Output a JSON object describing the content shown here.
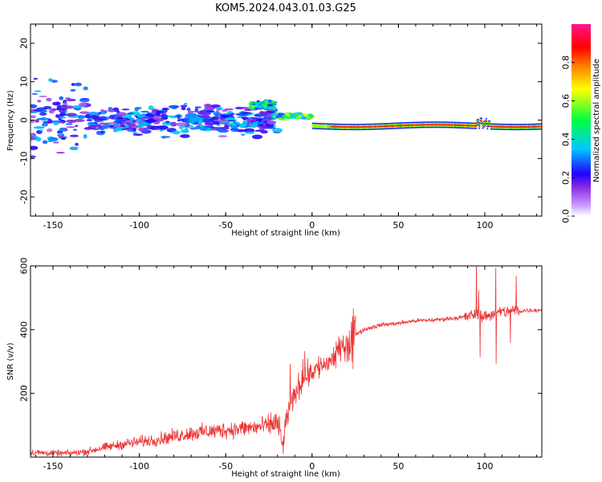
{
  "title": "KOM5.2024.043.01.03.G25",
  "chart_data": [
    {
      "type": "heatmap",
      "xlabel": "Height of straight line (km)",
      "ylabel": "Frequency (Hz)",
      "xlim": [
        -163,
        133
      ],
      "ylim": [
        -25,
        25
      ],
      "xticks": [
        -150,
        -100,
        -50,
        0,
        50,
        100
      ],
      "yticks": [
        -20,
        -10,
        0,
        10,
        20
      ],
      "colorbar": {
        "label": "Normalized spectral amplitude",
        "range": [
          0,
          1
        ],
        "ticks": [
          "0.0",
          "0.2",
          "0.4",
          "0.6",
          "0.8"
        ],
        "colormap": [
          "#ffffff",
          "#c896ff",
          "#8a2be2",
          "#2200ff",
          "#00c8ff",
          "#00ff40",
          "#ffff00",
          "#ff8000",
          "#ff0000",
          "#ff1490"
        ]
      },
      "trace": {
        "segments": [
          {
            "x_range": [
              -163,
              -20
            ],
            "freq_center": 0,
            "freq_spread": 4,
            "amplitude": 0.25
          },
          {
            "x_range": [
              -35,
              -22
            ],
            "freq_center": 4,
            "freq_spread": 1.5,
            "amplitude": 0.45
          },
          {
            "x_range": [
              -22,
              0
            ],
            "freq_center": 1,
            "freq_spread": 1,
            "amplitude": 0.55
          },
          {
            "x_range": [
              0,
              133
            ],
            "freq_center": -1.5,
            "freq_spread": 0.7,
            "amplitude": 0.85
          }
        ]
      }
    },
    {
      "type": "line",
      "xlabel": "Height of straight line (km)",
      "ylabel": "SNR (v/v)",
      "xlim": [
        -163,
        133
      ],
      "ylim": [
        0,
        600
      ],
      "xticks": [
        -150,
        -100,
        -50,
        0,
        50,
        100
      ],
      "yticks": [
        200,
        400,
        600
      ],
      "color": "#ee3333",
      "series": [
        {
          "x": [
            -163,
            -150,
            -140,
            -130,
            -120,
            -110,
            -100,
            -90,
            -80,
            -70,
            -60,
            -50,
            -40,
            -30,
            -25,
            -20,
            -17,
            -15,
            -10,
            -5,
            0,
            5,
            10,
            15,
            20,
            25,
            30,
            35,
            40,
            50,
            60,
            70,
            80,
            90,
            95,
            100,
            105,
            110,
            115,
            120,
            125,
            133
          ],
          "y": [
            15,
            12,
            12,
            18,
            30,
            40,
            48,
            55,
            65,
            75,
            80,
            85,
            90,
            95,
            100,
            110,
            30,
            120,
            200,
            250,
            270,
            285,
            300,
            330,
            360,
            385,
            400,
            408,
            415,
            420,
            428,
            430,
            435,
            440,
            450,
            440,
            450,
            455,
            460,
            458,
            460,
            462
          ]
        }
      ]
    }
  ]
}
